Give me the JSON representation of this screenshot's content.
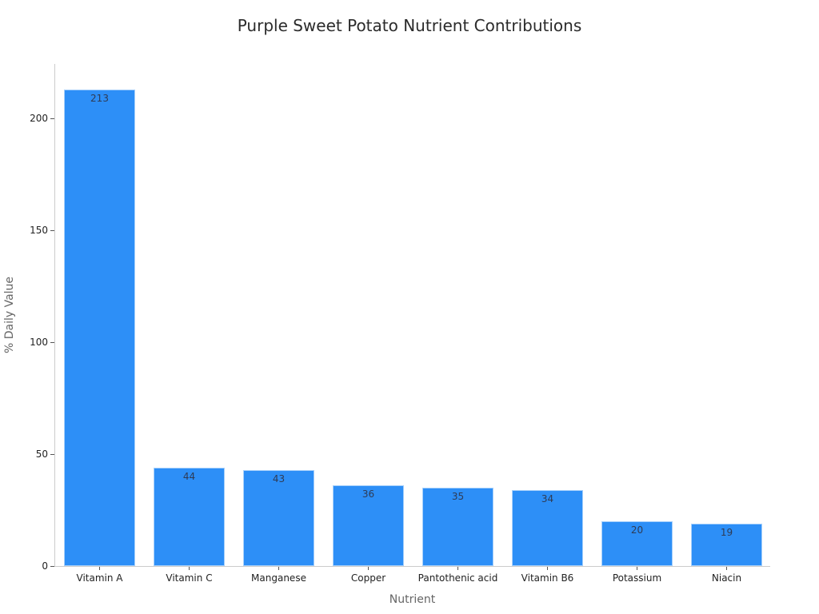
{
  "chart_data": {
    "type": "bar",
    "title": "Purple Sweet Potato Nutrient Contributions",
    "xlabel": "Nutrient",
    "ylabel": "% Daily Value",
    "categories": [
      "Vitamin A",
      "Vitamin C",
      "Manganese",
      "Copper",
      "Pantothenic acid",
      "Vitamin B6",
      "Potassium",
      "Niacin"
    ],
    "values": [
      213,
      44,
      43,
      36,
      35,
      34,
      20,
      19
    ],
    "ylim": [
      0,
      224
    ],
    "yticks": [
      0,
      50,
      100,
      150,
      200
    ],
    "grid": false,
    "bar_color": "#2d8ff7",
    "data_labels": true
  }
}
